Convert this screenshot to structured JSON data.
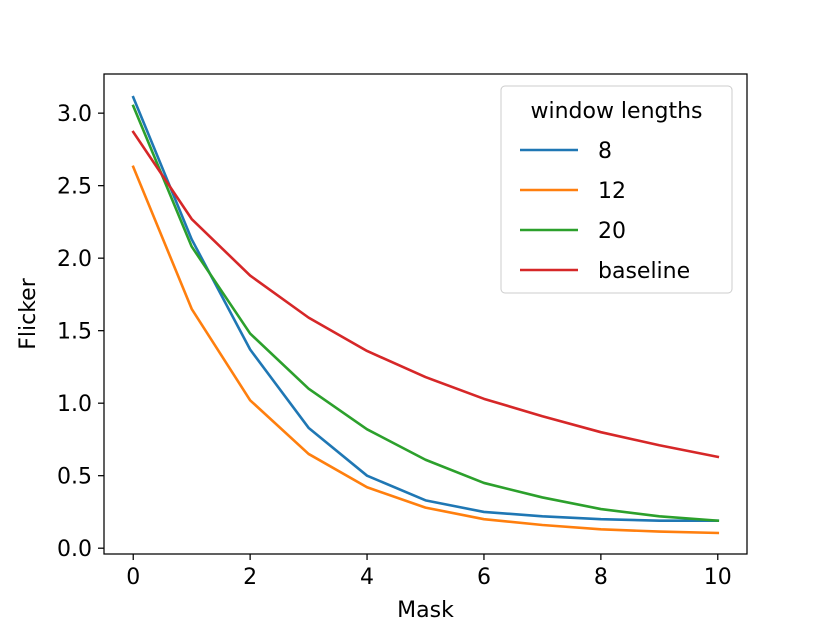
{
  "chart_data": {
    "type": "line",
    "title": "",
    "xlabel": "Mask",
    "ylabel": "Flicker",
    "xlim": [
      -0.5,
      10.5
    ],
    "ylim": [
      -0.04,
      3.27
    ],
    "xticks": [
      0,
      2,
      4,
      6,
      8,
      10
    ],
    "xtick_labels": [
      "0",
      "2",
      "4",
      "6",
      "8",
      "10"
    ],
    "yticks": [
      0.0,
      0.5,
      1.0,
      1.5,
      2.0,
      2.5,
      3.0
    ],
    "ytick_labels": [
      "0.0",
      "0.5",
      "1.0",
      "1.5",
      "2.0",
      "2.5",
      "3.0"
    ],
    "grid": false,
    "legend": {
      "title": "window lengths",
      "placement": "upper right"
    },
    "x": [
      0,
      1,
      2,
      3,
      4,
      5,
      6,
      7,
      8,
      9,
      10
    ],
    "series": [
      {
        "name": "8",
        "color": "#1f77b4",
        "values": [
          3.11,
          2.13,
          1.37,
          0.83,
          0.5,
          0.33,
          0.25,
          0.22,
          0.2,
          0.19,
          0.19
        ]
      },
      {
        "name": "12",
        "color": "#ff7f0e",
        "values": [
          2.63,
          1.65,
          1.02,
          0.65,
          0.42,
          0.28,
          0.2,
          0.16,
          0.13,
          0.115,
          0.105
        ]
      },
      {
        "name": "20",
        "color": "#2ca02c",
        "values": [
          3.05,
          2.08,
          1.48,
          1.1,
          0.82,
          0.61,
          0.45,
          0.35,
          0.27,
          0.22,
          0.19
        ]
      },
      {
        "name": "baseline",
        "color": "#d62728",
        "values": [
          2.87,
          2.27,
          1.88,
          1.59,
          1.36,
          1.18,
          1.03,
          0.91,
          0.8,
          0.71,
          0.63
        ]
      }
    ]
  }
}
